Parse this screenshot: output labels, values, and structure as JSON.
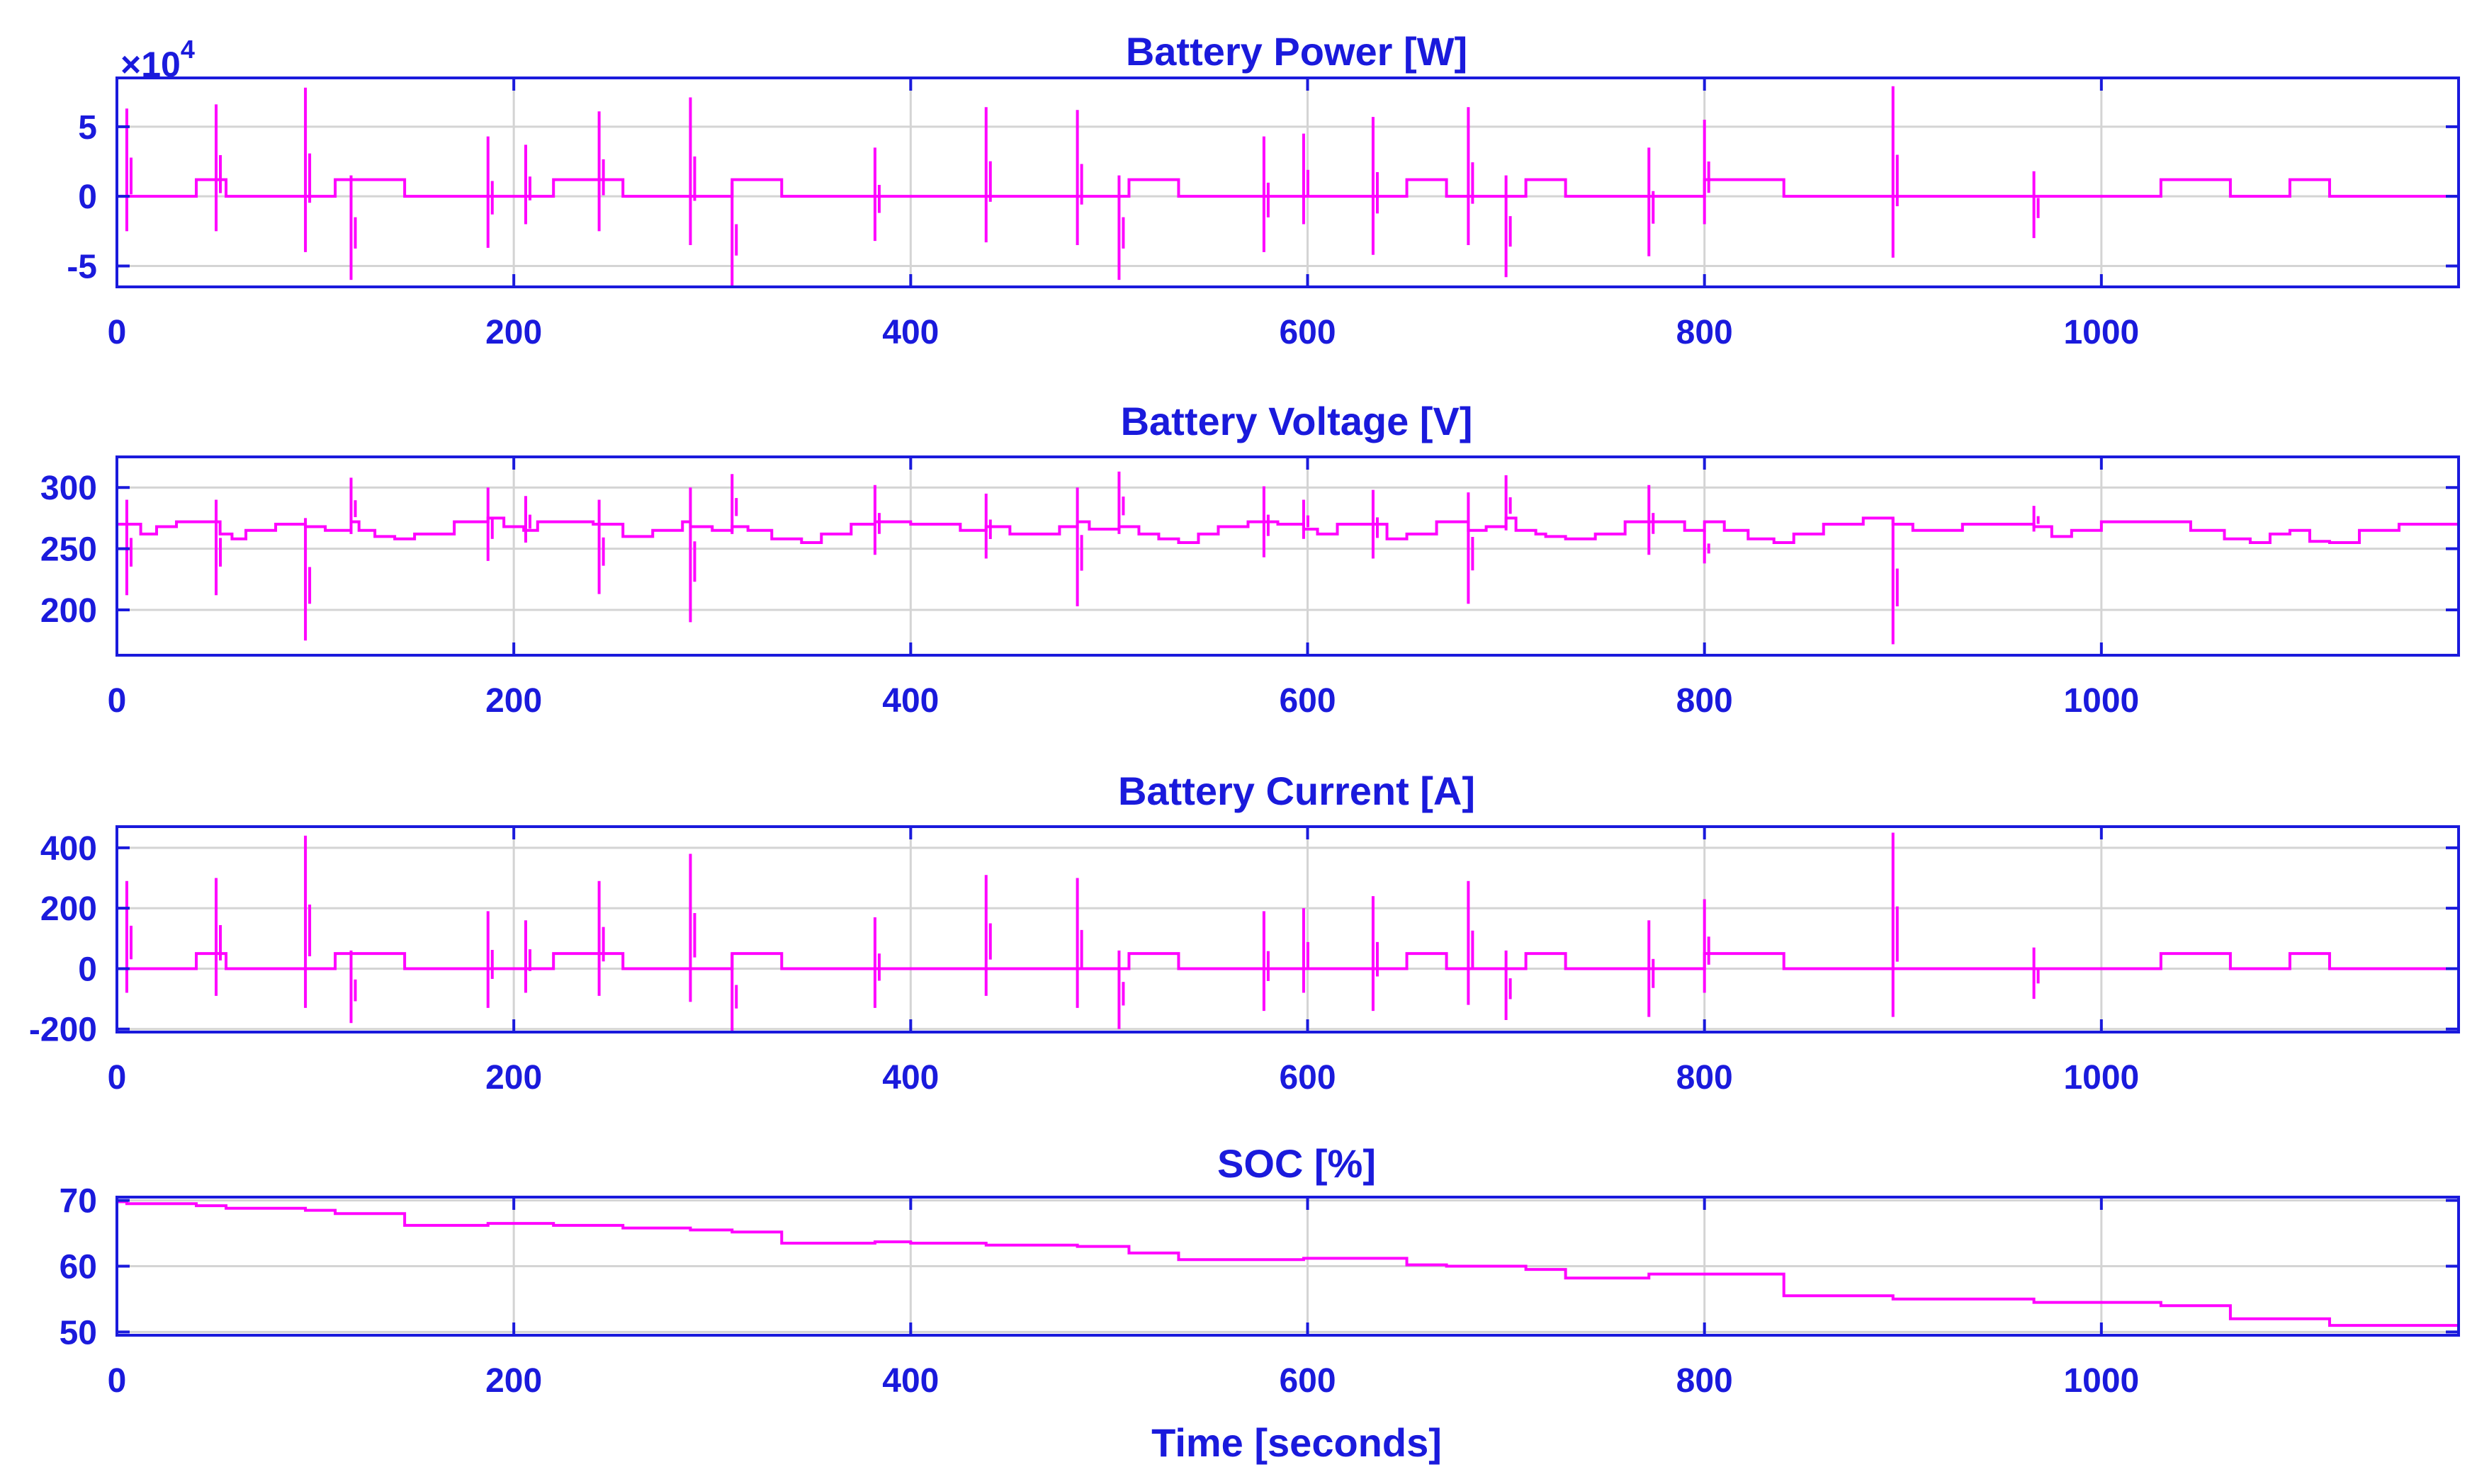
{
  "colors": {
    "axes": "#1a1adc",
    "trace": "#ff00ff",
    "grid": "#d4d4d4"
  },
  "chart_data": [
    {
      "type": "line",
      "title": "Battery Power [W]",
      "multiplier": "×10",
      "multiplier_exp": "4",
      "xlim": [
        0,
        1180
      ],
      "ylim": [
        -6.5,
        8.5
      ],
      "yticks": [
        -5,
        0,
        5
      ],
      "ytick_labels": [
        "-5",
        "0",
        "5"
      ],
      "xticks": [
        0,
        200,
        400,
        600,
        800,
        1000
      ],
      "xtick_labels": [
        "0",
        "200",
        "400",
        "600",
        "800",
        "1000"
      ],
      "grid": true,
      "series": [
        {
          "baseline": 0,
          "steps": [
            [
              40,
              55,
              1.2
            ],
            [
              110,
              145,
              1.2
            ],
            [
              220,
              255,
              1.2
            ],
            [
              310,
              335,
              1.2
            ],
            [
              510,
              535,
              1.2
            ],
            [
              650,
              670,
              1.2
            ],
            [
              710,
              730,
              1.2
            ],
            [
              800,
              840,
              1.2
            ],
            [
              1030,
              1065,
              1.2
            ],
            [
              1095,
              1115,
              1.2
            ]
          ],
          "spikes": [
            [
              5,
              6.3,
              -2.5
            ],
            [
              50,
              6.6,
              -2.5
            ],
            [
              95,
              7.8,
              -4
            ],
            [
              118,
              1.5,
              -6
            ],
            [
              187,
              4.3,
              -3.7
            ],
            [
              206,
              3.7,
              -2
            ],
            [
              243,
              6.1,
              -2.5
            ],
            [
              289,
              7.1,
              -3.5
            ],
            [
              310,
              1,
              -6.5
            ],
            [
              382,
              3.5,
              -3.2
            ],
            [
              438,
              6.4,
              -3.3
            ],
            [
              484,
              6.2,
              -3.5
            ],
            [
              505,
              1.5,
              -6
            ],
            [
              578,
              4.3,
              -4
            ],
            [
              598,
              4.5,
              -2
            ],
            [
              633,
              5.7,
              -4.2
            ],
            [
              681,
              6.4,
              -3.5
            ],
            [
              700,
              1.5,
              -5.8
            ],
            [
              772,
              3.5,
              -4.3
            ],
            [
              800,
              5.5,
              -2
            ],
            [
              895,
              7.9,
              -4.4
            ],
            [
              966,
              1.8,
              -3
            ]
          ]
        }
      ]
    },
    {
      "type": "line",
      "title": "Battery Voltage [V]",
      "xlim": [
        0,
        1180
      ],
      "ylim": [
        163,
        325
      ],
      "yticks": [
        200,
        250,
        300
      ],
      "ytick_labels": [
        "200",
        "250",
        "300"
      ],
      "xticks": [
        0,
        200,
        400,
        600,
        800,
        1000
      ],
      "xtick_labels": [
        "0",
        "200",
        "400",
        "600",
        "800",
        "1000"
      ],
      "grid": true,
      "series": [
        {
          "x": [
            0,
            5,
            12,
            20,
            30,
            45,
            52,
            58,
            65,
            80,
            95,
            105,
            118,
            122,
            130,
            140,
            150,
            170,
            187,
            195,
            205,
            212,
            220,
            240,
            243,
            255,
            270,
            285,
            289,
            300,
            310,
            318,
            330,
            345,
            355,
            370,
            382,
            390,
            400,
            410,
            425,
            438,
            450,
            460,
            475,
            484,
            490,
            505,
            515,
            525,
            535,
            545,
            555,
            570,
            578,
            585,
            598,
            605,
            615,
            633,
            640,
            650,
            665,
            681,
            690,
            700,
            705,
            715,
            720,
            730,
            745,
            760,
            772,
            790,
            800,
            810,
            822,
            835,
            845,
            860,
            880,
            895,
            905,
            930,
            950,
            966,
            975,
            985,
            1000,
            1030,
            1045,
            1062,
            1075,
            1085,
            1095,
            1105,
            1115,
            1130,
            1150,
            1180
          ],
          "y": [
            270,
            270,
            262,
            268,
            272,
            272,
            262,
            258,
            265,
            270,
            268,
            265,
            272,
            265,
            260,
            258,
            262,
            272,
            275,
            268,
            265,
            272,
            272,
            270,
            270,
            260,
            265,
            272,
            268,
            265,
            268,
            265,
            258,
            255,
            262,
            270,
            272,
            272,
            270,
            270,
            265,
            268,
            262,
            262,
            268,
            272,
            266,
            268,
            262,
            258,
            255,
            262,
            268,
            272,
            272,
            270,
            266,
            262,
            270,
            270,
            258,
            262,
            272,
            265,
            268,
            275,
            265,
            262,
            260,
            258,
            262,
            272,
            272,
            265,
            272,
            265,
            258,
            255,
            262,
            270,
            275,
            270,
            265,
            270,
            270,
            268,
            260,
            265,
            272,
            272,
            265,
            258,
            255,
            262,
            265,
            256,
            255,
            265,
            270,
            272
          ],
          "spikes": [
            [
              5,
              290,
              212
            ],
            [
              50,
              290,
              212
            ],
            [
              95,
              275,
              175
            ],
            [
              118,
              308,
              262
            ],
            [
              187,
              300,
              240
            ],
            [
              206,
              293,
              255
            ],
            [
              243,
              290,
              213
            ],
            [
              289,
              300,
              190
            ],
            [
              310,
              311,
              262
            ],
            [
              382,
              302,
              245
            ],
            [
              438,
              295,
              242
            ],
            [
              484,
              300,
              203
            ],
            [
              505,
              313,
              262
            ],
            [
              578,
              301,
              243
            ],
            [
              598,
              290,
              258
            ],
            [
              633,
              298,
              242
            ],
            [
              681,
              296,
              205
            ],
            [
              700,
              310,
              265
            ],
            [
              772,
              302,
              245
            ],
            [
              800,
              265,
              238
            ],
            [
              895,
              275,
              172
            ],
            [
              966,
              285,
              264
            ]
          ]
        }
      ]
    },
    {
      "type": "line",
      "title": "Battery Current [A]",
      "xlim": [
        0,
        1180
      ],
      "ylim": [
        -210,
        470
      ],
      "yticks": [
        -200,
        0,
        200,
        400
      ],
      "ytick_labels": [
        "-200",
        "0",
        "200",
        "400"
      ],
      "xticks": [
        0,
        200,
        400,
        600,
        800,
        1000
      ],
      "xtick_labels": [
        "0",
        "200",
        "400",
        "600",
        "800",
        "1000"
      ],
      "grid": true,
      "series": [
        {
          "baseline": 0,
          "steps": [
            [
              40,
              55,
              50
            ],
            [
              110,
              145,
              50
            ],
            [
              220,
              255,
              50
            ],
            [
              310,
              335,
              50
            ],
            [
              510,
              535,
              50
            ],
            [
              650,
              670,
              50
            ],
            [
              710,
              730,
              50
            ],
            [
              800,
              840,
              50
            ],
            [
              1030,
              1065,
              50
            ],
            [
              1095,
              1115,
              50
            ]
          ],
          "spikes": [
            [
              5,
              290,
              -80
            ],
            [
              50,
              300,
              -90
            ],
            [
              95,
              440,
              -130
            ],
            [
              118,
              60,
              -180
            ],
            [
              187,
              190,
              -130
            ],
            [
              206,
              160,
              -80
            ],
            [
              243,
              290,
              -90
            ],
            [
              289,
              380,
              -110
            ],
            [
              310,
              50,
              -210
            ],
            [
              382,
              170,
              -130
            ],
            [
              438,
              310,
              -90
            ],
            [
              484,
              300,
              -130
            ],
            [
              505,
              60,
              -200
            ],
            [
              578,
              190,
              -140
            ],
            [
              598,
              200,
              -80
            ],
            [
              633,
              240,
              -140
            ],
            [
              681,
              290,
              -120
            ],
            [
              700,
              60,
              -170
            ],
            [
              772,
              160,
              -160
            ],
            [
              800,
              230,
              -80
            ],
            [
              895,
              450,
              -160
            ],
            [
              966,
              70,
              -100
            ]
          ]
        }
      ]
    },
    {
      "type": "line",
      "title": "SOC [%]",
      "xlabel": "Time [seconds]",
      "xlim": [
        0,
        1180
      ],
      "ylim": [
        49.5,
        70.5
      ],
      "yticks": [
        50,
        60,
        70
      ],
      "ytick_labels": [
        "50",
        "60",
        "70"
      ],
      "xticks": [
        0,
        200,
        400,
        600,
        800,
        1000
      ],
      "xtick_labels": [
        "0",
        "200",
        "400",
        "600",
        "800",
        "1000"
      ],
      "grid": true,
      "series": [
        {
          "x": [
            0,
            5,
            40,
            55,
            95,
            110,
            145,
            187,
            220,
            255,
            289,
            310,
            335,
            382,
            400,
            438,
            484,
            510,
            535,
            578,
            598,
            650,
            670,
            700,
            710,
            730,
            772,
            800,
            840,
            895,
            966,
            1030,
            1065,
            1095,
            1115,
            1150,
            1180
          ],
          "y": [
            69.8,
            69.5,
            69.2,
            68.8,
            68.5,
            68.0,
            66.2,
            66.5,
            66.2,
            65.8,
            65.5,
            65.2,
            63.5,
            63.7,
            63.5,
            63.2,
            63.0,
            62.0,
            61.0,
            61.0,
            61.2,
            60.2,
            60.0,
            60.0,
            59.5,
            58.2,
            58.8,
            58.8,
            55.5,
            55.0,
            54.5,
            54.0,
            52.0,
            52.0,
            51.0,
            51.0,
            51.5
          ]
        }
      ]
    }
  ]
}
